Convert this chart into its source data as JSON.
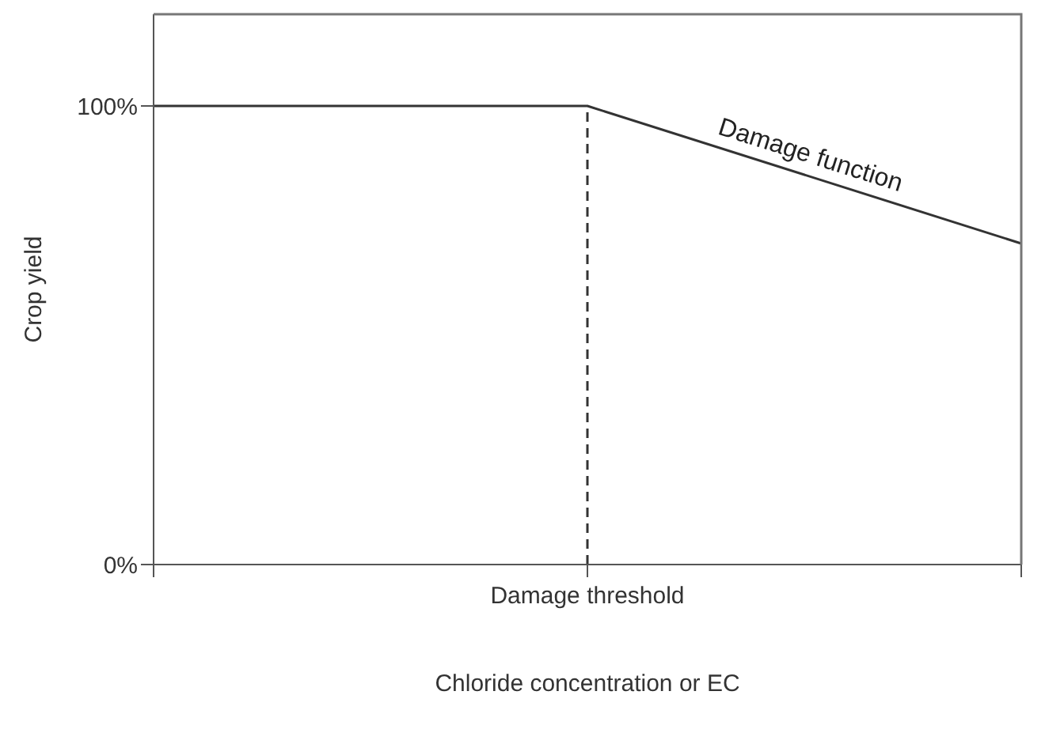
{
  "chart_data": {
    "type": "line",
    "xlabel": "Chloride concentration or EC",
    "ylabel": "Crop yield",
    "categories": [
      null,
      "Damage threshold",
      null
    ],
    "series": [
      {
        "color": "#333333",
        "values": [
          100,
          100,
          70
        ]
      }
    ],
    "ylim": [
      0,
      120
    ],
    "yticks": [
      {
        "value": 0,
        "label": "0%"
      },
      {
        "value": 100,
        "label": "100%"
      }
    ],
    "ref_lines": [
      {
        "axis": "x",
        "value": "Damage threshold",
        "color": "#333333",
        "line_style": "dashed"
      }
    ],
    "annotations": [
      "Damage function"
    ],
    "marker": "none",
    "line_style": "solid",
    "grid": false,
    "legend": false
  }
}
